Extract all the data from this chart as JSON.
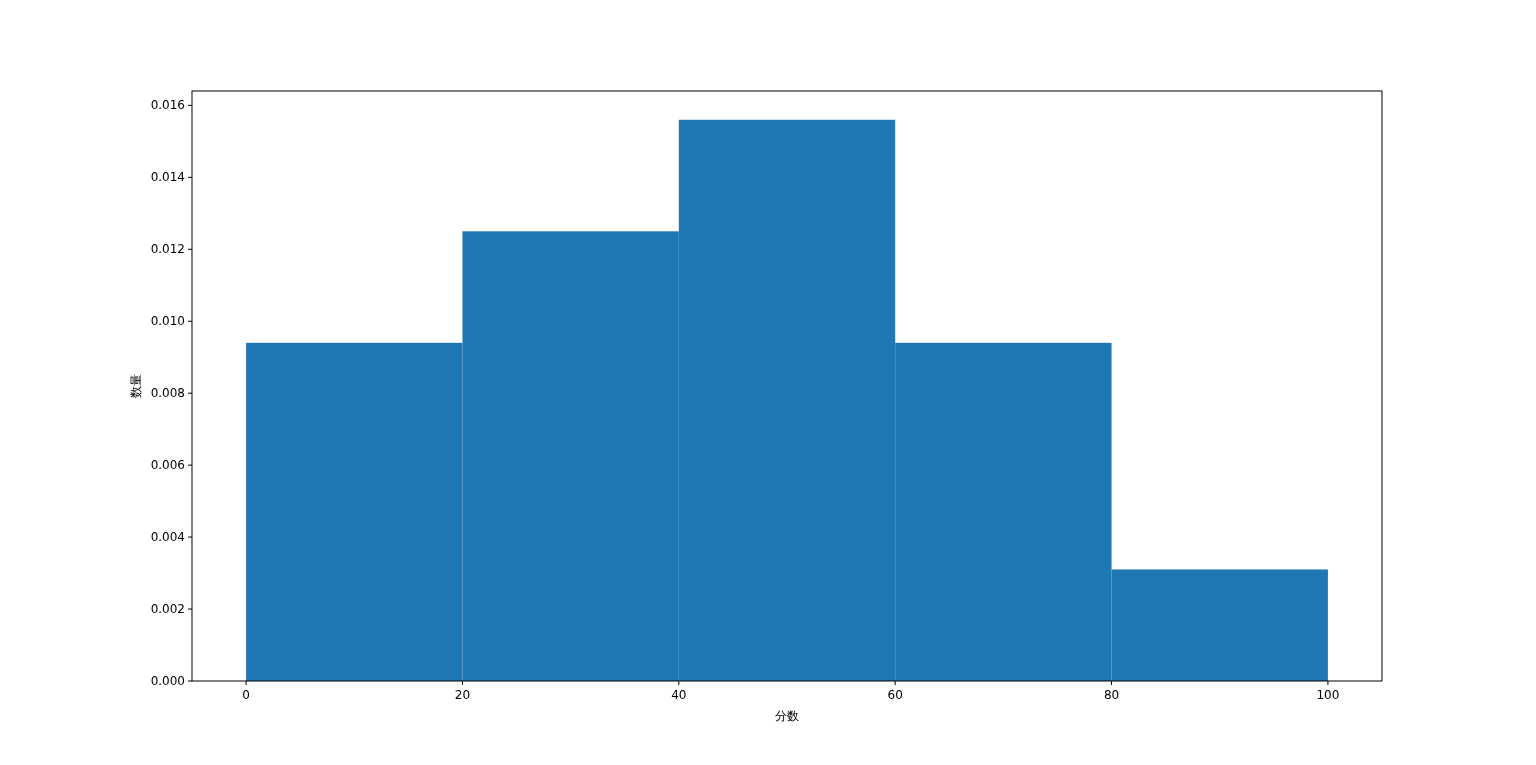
{
  "chart_data": {
    "type": "histogram",
    "xlabel": "分数",
    "ylabel": "数量",
    "bins": [
      0,
      20,
      40,
      60,
      80,
      100
    ],
    "values": [
      0.0094,
      0.0125,
      0.0156,
      0.0094,
      0.0031
    ],
    "color": "#1f77b4",
    "xlim": [
      -5,
      105
    ],
    "ylim": [
      0,
      0.0164
    ],
    "xticks": [
      0,
      20,
      40,
      60,
      80,
      100
    ],
    "yticks": [
      {
        "value": 0,
        "label": "0.000"
      },
      {
        "value": 0.002,
        "label": "0.002"
      },
      {
        "value": 0.004,
        "label": "0.004"
      },
      {
        "value": 0.006,
        "label": "0.006"
      },
      {
        "value": 0.008,
        "label": "0.008"
      },
      {
        "value": 0.01,
        "label": "0.010"
      },
      {
        "value": 0.012,
        "label": "0.012"
      },
      {
        "value": 0.014,
        "label": "0.014"
      },
      {
        "value": 0.016,
        "label": "0.016"
      }
    ],
    "grid": false
  }
}
